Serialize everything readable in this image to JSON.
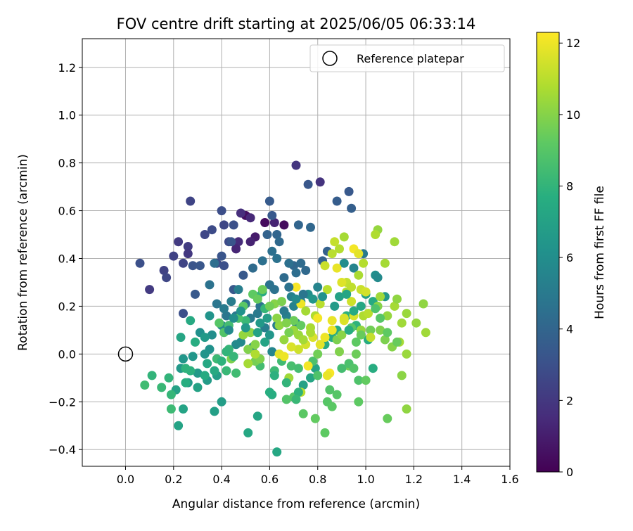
{
  "chart_data": {
    "type": "scatter",
    "title": "FOV centre drift starting at 2025/06/05 06:33:14",
    "xlabel": "Angular distance from reference (arcmin)",
    "ylabel": "Rotation from reference (arcmin)",
    "xlim": [
      -0.18,
      1.6
    ],
    "ylim": [
      -0.47,
      1.32
    ],
    "xticks": [
      "0.0",
      "0.2",
      "0.4",
      "0.6",
      "0.8",
      "1.0",
      "1.2",
      "1.4",
      "1.6"
    ],
    "yticks": [
      "−0.4",
      "−0.2",
      "0.0",
      "0.2",
      "0.4",
      "0.6",
      "0.8",
      "1.0",
      "1.2"
    ],
    "grid": true,
    "legend": {
      "placement": "top-right",
      "entries": [
        "Reference platepar"
      ]
    },
    "reference": {
      "x": 0.0,
      "y": 0.0
    },
    "colorbar": {
      "label": "Hours from first FF file",
      "min": 0,
      "max": 12.3,
      "ticks": [
        "0",
        "2",
        "4",
        "6",
        "8",
        "10",
        "12"
      ],
      "colormap": "viridis"
    },
    "points": [
      [
        0.5,
        0.58,
        0.5
      ],
      [
        0.58,
        0.55,
        0.3
      ],
      [
        0.66,
        0.54,
        0.4
      ],
      [
        0.54,
        0.49,
        0.9
      ],
      [
        0.52,
        0.47,
        1.2
      ],
      [
        0.47,
        0.47,
        1.5
      ],
      [
        0.46,
        0.44,
        1.3
      ],
      [
        0.48,
        0.59,
        1.6
      ],
      [
        0.62,
        0.55,
        1.2
      ],
      [
        0.52,
        0.57,
        1.4
      ],
      [
        0.81,
        0.72,
        1.8
      ],
      [
        0.71,
        0.79,
        1.9
      ],
      [
        0.22,
        0.47,
        2.1
      ],
      [
        0.26,
        0.45,
        2.2
      ],
      [
        0.26,
        0.42,
        2.0
      ],
      [
        0.1,
        0.27,
        2.1
      ],
      [
        0.16,
        0.35,
        2.4
      ],
      [
        0.17,
        0.32,
        2.6
      ],
      [
        0.2,
        0.41,
        2.4
      ],
      [
        0.24,
        0.38,
        2.5
      ],
      [
        0.27,
        0.64,
        2.5
      ],
      [
        0.33,
        0.5,
        2.6
      ],
      [
        0.36,
        0.52,
        2.8
      ],
      [
        0.4,
        0.6,
        2.9
      ],
      [
        0.41,
        0.54,
        2.6
      ],
      [
        0.43,
        0.47,
        2.7
      ],
      [
        0.38,
        0.38,
        2.8
      ],
      [
        0.41,
        0.37,
        3.0
      ],
      [
        0.44,
        0.47,
        3.2
      ],
      [
        0.45,
        0.54,
        3.0
      ],
      [
        0.06,
        0.38,
        3.0
      ],
      [
        0.24,
        0.17,
        3.0
      ],
      [
        0.28,
        0.37,
        3.2
      ],
      [
        0.31,
        0.37,
        3.3
      ],
      [
        0.29,
        0.25,
        3.4
      ],
      [
        0.4,
        0.41,
        3.2
      ],
      [
        0.45,
        0.27,
        3.4
      ],
      [
        0.49,
        0.33,
        3.4
      ],
      [
        0.6,
        0.64,
        3.5
      ],
      [
        0.61,
        0.58,
        3.4
      ],
      [
        0.76,
        0.71,
        3.3
      ],
      [
        0.93,
        0.68,
        3.4
      ],
      [
        0.94,
        0.61,
        3.7
      ],
      [
        0.88,
        0.64,
        3.6
      ],
      [
        0.84,
        0.43,
        3.8
      ],
      [
        0.82,
        0.39,
        3.9
      ],
      [
        0.72,
        0.54,
        4.0
      ],
      [
        0.77,
        0.53,
        4.1
      ],
      [
        0.63,
        0.5,
        4.0
      ],
      [
        0.59,
        0.5,
        3.9
      ],
      [
        0.64,
        0.47,
        4.2
      ],
      [
        0.7,
        0.37,
        4.1
      ],
      [
        0.73,
        0.38,
        4.3
      ],
      [
        0.75,
        0.35,
        4.2
      ],
      [
        0.71,
        0.34,
        4.4
      ],
      [
        0.68,
        0.38,
        4.5
      ],
      [
        0.66,
        0.32,
        4.3
      ],
      [
        0.6,
        0.29,
        4.6
      ],
      [
        0.62,
        0.27,
        4.6
      ],
      [
        0.56,
        0.2,
        4.7
      ],
      [
        0.5,
        0.21,
        4.7
      ],
      [
        0.46,
        0.16,
        4.8
      ],
      [
        0.42,
        0.16,
        4.8
      ],
      [
        0.52,
        0.15,
        5.0
      ],
      [
        0.55,
        0.17,
        5.0
      ],
      [
        0.58,
        0.11,
        5.2
      ],
      [
        0.63,
        0.12,
        5.2
      ],
      [
        0.67,
        0.16,
        5.3
      ],
      [
        0.7,
        0.2,
        5.4
      ],
      [
        0.73,
        0.22,
        5.5
      ],
      [
        0.71,
        0.13,
        5.6
      ],
      [
        0.61,
        0.01,
        5.6
      ],
      [
        0.53,
        0.03,
        5.7
      ],
      [
        0.48,
        0.05,
        5.7
      ],
      [
        0.46,
        0.04,
        5.8
      ],
      [
        0.4,
        0.12,
        5.9
      ],
      [
        0.36,
        0.08,
        6.0
      ],
      [
        0.31,
        0.09,
        6.1
      ],
      [
        0.35,
        0.02,
        6.2
      ],
      [
        0.33,
        0.0,
        6.3
      ],
      [
        0.28,
        -0.01,
        6.4
      ],
      [
        0.24,
        -0.02,
        6.4
      ],
      [
        0.23,
        -0.06,
        6.5
      ],
      [
        0.26,
        -0.12,
        6.6
      ],
      [
        0.3,
        -0.08,
        6.6
      ],
      [
        0.34,
        -0.11,
        6.7
      ],
      [
        0.38,
        -0.09,
        6.8
      ],
      [
        0.4,
        -0.2,
        6.8
      ],
      [
        0.37,
        -0.24,
        6.9
      ],
      [
        0.3,
        -0.14,
        7.0
      ],
      [
        0.21,
        -0.15,
        7.0
      ],
      [
        0.24,
        -0.23,
        7.1
      ],
      [
        0.22,
        -0.3,
        7.1
      ],
      [
        0.55,
        -0.26,
        7.2
      ],
      [
        0.51,
        -0.33,
        7.3
      ],
      [
        0.63,
        -0.41,
        7.3
      ],
      [
        0.74,
        -0.13,
        7.0
      ],
      [
        0.77,
        -0.1,
        7.2
      ],
      [
        0.79,
        -0.06,
        7.1
      ],
      [
        0.83,
        0.04,
        7.4
      ],
      [
        0.86,
        0.07,
        7.5
      ],
      [
        0.88,
        0.1,
        7.5
      ],
      [
        0.98,
        0.2,
        7.3
      ],
      [
        1.0,
        0.25,
        7.0
      ],
      [
        1.03,
        0.22,
        7.4
      ],
      [
        1.01,
        0.06,
        7.6
      ],
      [
        1.03,
        -0.06,
        7.6
      ],
      [
        0.92,
        0.16,
        7.8
      ],
      [
        0.96,
        0.12,
        7.9
      ],
      [
        1.04,
        0.33,
        6.0
      ],
      [
        0.99,
        0.42,
        5.0
      ],
      [
        0.95,
        0.36,
        5.5
      ],
      [
        0.91,
        0.38,
        6.0
      ],
      [
        1.05,
        0.32,
        5.8
      ],
      [
        1.08,
        0.24,
        6.5
      ],
      [
        0.57,
        0.26,
        7.5
      ],
      [
        0.55,
        0.24,
        8.0
      ],
      [
        0.58,
        0.19,
        8.1
      ],
      [
        0.5,
        0.14,
        8.2
      ],
      [
        0.43,
        0.02,
        8.1
      ],
      [
        0.38,
        -0.02,
        8.3
      ],
      [
        0.42,
        -0.07,
        8.2
      ],
      [
        0.46,
        -0.08,
        8.4
      ],
      [
        0.56,
        -0.05,
        8.5
      ],
      [
        0.62,
        -0.07,
        8.3
      ],
      [
        0.65,
        -0.03,
        8.4
      ],
      [
        0.69,
        -0.05,
        8.6
      ],
      [
        0.72,
        -0.06,
        8.5
      ],
      [
        0.78,
        -0.03,
        8.7
      ],
      [
        0.8,
        -0.09,
        8.8
      ],
      [
        0.85,
        -0.15,
        8.9
      ],
      [
        0.88,
        -0.17,
        9.0
      ],
      [
        0.84,
        -0.2,
        9.0
      ],
      [
        0.86,
        -0.22,
        9.1
      ],
      [
        0.83,
        -0.33,
        9.2
      ],
      [
        0.79,
        -0.27,
        9.3
      ],
      [
        0.74,
        -0.25,
        9.1
      ],
      [
        0.7,
        -0.18,
        9.0
      ],
      [
        0.67,
        -0.19,
        8.9
      ],
      [
        0.97,
        -0.11,
        8.8
      ],
      [
        0.97,
        -0.2,
        9.2
      ],
      [
        1.0,
        -0.11,
        9.3
      ],
      [
        1.09,
        -0.27,
        9.4
      ],
      [
        0.93,
        -0.05,
        9.6
      ],
      [
        0.96,
        0.0,
        9.5
      ],
      [
        1.02,
        0.1,
        9.6
      ],
      [
        1.08,
        0.06,
        9.8
      ],
      [
        1.06,
        0.1,
        9.9
      ],
      [
        1.11,
        0.03,
        10.0
      ],
      [
        1.15,
        -0.09,
        10.1
      ],
      [
        1.17,
        -0.23,
        10.2
      ],
      [
        1.21,
        0.13,
        10.3
      ],
      [
        1.24,
        0.21,
        10.2
      ],
      [
        1.25,
        0.09,
        10.5
      ],
      [
        1.17,
        0.0,
        10.4
      ],
      [
        1.14,
        0.05,
        10.6
      ],
      [
        1.17,
        0.17,
        10.4
      ],
      [
        1.15,
        0.13,
        10.5
      ],
      [
        1.12,
        0.2,
        10.6
      ],
      [
        1.13,
        0.23,
        10.2
      ],
      [
        1.09,
        0.16,
        10.3
      ],
      [
        1.06,
        0.24,
        10.5
      ],
      [
        1.05,
        0.2,
        10.0
      ],
      [
        1.05,
        0.52,
        10.3
      ],
      [
        1.12,
        0.47,
        10.5
      ],
      [
        1.08,
        0.38,
        10.6
      ],
      [
        1.04,
        0.5,
        10.8
      ],
      [
        0.99,
        0.38,
        10.9
      ],
      [
        0.97,
        0.33,
        10.7
      ],
      [
        0.91,
        0.49,
        10.6
      ],
      [
        0.89,
        0.44,
        10.9
      ],
      [
        0.87,
        0.47,
        11.2
      ],
      [
        0.86,
        0.42,
        11.0
      ],
      [
        0.83,
        0.37,
        11.3
      ],
      [
        0.84,
        0.27,
        11.0
      ],
      [
        0.92,
        0.3,
        11.2
      ],
      [
        0.94,
        0.22,
        11.4
      ],
      [
        0.95,
        0.16,
        11.6
      ],
      [
        0.91,
        0.14,
        11.7
      ],
      [
        0.86,
        0.14,
        11.9
      ],
      [
        0.83,
        0.07,
        12.0
      ],
      [
        0.81,
        0.04,
        11.8
      ],
      [
        0.78,
        0.07,
        11.6
      ],
      [
        0.75,
        0.04,
        11.5
      ],
      [
        0.72,
        0.02,
        11.4
      ],
      [
        0.69,
        0.03,
        11.6
      ],
      [
        0.64,
        0.0,
        11.8
      ],
      [
        0.66,
        -0.01,
        12.0
      ],
      [
        0.76,
        -0.05,
        12.1
      ],
      [
        0.85,
        -0.08,
        12.2
      ],
      [
        0.73,
        0.21,
        12.0
      ],
      [
        0.71,
        0.28,
        12.2
      ],
      [
        0.81,
        0.21,
        11.0
      ],
      [
        0.79,
        0.16,
        10.8
      ],
      [
        0.77,
        0.11,
        10.7
      ],
      [
        0.75,
        0.18,
        10.6
      ],
      [
        0.7,
        0.1,
        10.4
      ],
      [
        0.64,
        0.12,
        10.2
      ],
      [
        0.62,
        0.21,
        10.0
      ],
      [
        0.52,
        0.09,
        10.1
      ],
      [
        0.49,
        0.08,
        10.3
      ],
      [
        0.54,
        0.04,
        10.0
      ],
      [
        0.51,
        0.02,
        9.9
      ],
      [
        0.44,
        -0.02,
        9.8
      ],
      [
        0.54,
        -0.03,
        9.7
      ],
      [
        0.56,
        -0.02,
        9.9
      ],
      [
        0.68,
        0.09,
        9.7
      ],
      [
        0.7,
        0.14,
        9.5
      ],
      [
        0.73,
        0.12,
        9.3
      ],
      [
        0.8,
        0.0,
        9.6
      ],
      [
        0.88,
        0.06,
        9.8
      ],
      [
        0.89,
        0.01,
        9.9
      ],
      [
        0.9,
        0.08,
        10.1
      ],
      [
        0.98,
        0.1,
        10.3
      ],
      [
        0.99,
        0.16,
        10.8
      ],
      [
        1.01,
        0.17,
        11.0
      ],
      [
        1.02,
        0.07,
        11.2
      ],
      [
        0.92,
        0.26,
        10.9
      ],
      [
        0.94,
        0.28,
        11.1
      ],
      [
        0.98,
        0.27,
        11.3
      ],
      [
        1.0,
        0.26,
        11.5
      ],
      [
        0.9,
        0.3,
        11.7
      ],
      [
        0.88,
        0.36,
        11.9
      ],
      [
        0.95,
        0.44,
        12.1
      ],
      [
        0.97,
        0.42,
        11.8
      ],
      [
        0.91,
        0.15,
        11.6
      ],
      [
        0.86,
        0.1,
        12.0
      ],
      [
        0.8,
        0.15,
        12.1
      ],
      [
        0.84,
        -0.09,
        11.9
      ],
      [
        0.73,
        -0.16,
        11.0
      ],
      [
        0.68,
        -0.1,
        10.5
      ],
      [
        0.51,
        -0.04,
        10.6
      ],
      [
        0.54,
        0.0,
        10.8
      ],
      [
        0.27,
        0.14,
        7.4
      ],
      [
        0.29,
        0.05,
        7.6
      ],
      [
        0.27,
        -0.07,
        7.8
      ],
      [
        0.25,
        -0.06,
        7.9
      ],
      [
        0.25,
        -0.12,
        7.7
      ],
      [
        0.18,
        -0.1,
        8.0
      ],
      [
        0.19,
        -0.17,
        8.1
      ],
      [
        0.15,
        -0.14,
        8.2
      ],
      [
        0.19,
        -0.23,
        8.3
      ],
      [
        0.11,
        -0.09,
        8.0
      ],
      [
        0.08,
        -0.13,
        8.4
      ],
      [
        0.23,
        0.07,
        7.2
      ],
      [
        0.34,
        -0.04,
        7.3
      ],
      [
        0.37,
        -0.07,
        7.4
      ],
      [
        0.33,
        -0.09,
        7.5
      ],
      [
        0.4,
        -0.03,
        7.9
      ],
      [
        0.42,
        0.01,
        8.0
      ],
      [
        0.45,
        -0.01,
        8.1
      ],
      [
        0.43,
        0.12,
        8.5
      ],
      [
        0.47,
        0.15,
        8.7
      ],
      [
        0.41,
        0.09,
        8.9
      ],
      [
        0.39,
        0.13,
        9.0
      ],
      [
        0.49,
        0.2,
        9.1
      ],
      [
        0.53,
        0.25,
        9.2
      ],
      [
        0.55,
        0.23,
        9.4
      ],
      [
        0.57,
        0.27,
        9.5
      ],
      [
        0.6,
        0.2,
        9.6
      ],
      [
        0.65,
        0.22,
        9.8
      ],
      [
        0.67,
        0.13,
        9.9
      ],
      [
        0.63,
        0.15,
        10.1
      ],
      [
        0.66,
        0.06,
        10.3
      ],
      [
        0.72,
        0.08,
        10.4
      ],
      [
        0.74,
        0.06,
        10.6
      ],
      [
        0.77,
        0.09,
        10.7
      ],
      [
        0.67,
        -0.12,
        8.0
      ],
      [
        0.62,
        -0.09,
        7.8
      ],
      [
        0.6,
        -0.16,
        7.7
      ],
      [
        0.61,
        -0.17,
        7.6
      ],
      [
        0.72,
        -0.16,
        7.9
      ],
      [
        0.71,
        -0.19,
        8.2
      ],
      [
        0.9,
        -0.06,
        8.5
      ],
      [
        0.93,
        -0.04,
        8.7
      ],
      [
        0.95,
        -0.06,
        8.9
      ],
      [
        0.94,
        0.11,
        9.0
      ],
      [
        0.96,
        0.05,
        9.2
      ],
      [
        0.98,
        0.08,
        9.4
      ],
      [
        1.04,
        0.19,
        8.8
      ],
      [
        1.06,
        0.15,
        9.0
      ],
      [
        1.09,
        0.09,
        9.2
      ],
      [
        1.13,
        0.05,
        9.4
      ],
      [
        0.58,
        0.05,
        7.1
      ],
      [
        0.55,
        0.09,
        7.0
      ],
      [
        0.59,
        0.15,
        6.8
      ],
      [
        0.56,
        0.13,
        6.6
      ],
      [
        0.6,
        0.08,
        6.4
      ],
      [
        0.5,
        0.11,
        6.5
      ],
      [
        0.48,
        0.18,
        6.2
      ],
      [
        0.45,
        0.15,
        6.0
      ],
      [
        0.43,
        0.1,
        5.8
      ],
      [
        0.35,
        0.16,
        6.3
      ],
      [
        0.33,
        0.07,
        6.6
      ],
      [
        0.66,
        0.18,
        5.0
      ],
      [
        0.69,
        0.24,
        5.3
      ],
      [
        0.71,
        0.23,
        5.8
      ],
      [
        0.76,
        0.25,
        6.0
      ],
      [
        0.8,
        0.28,
        5.5
      ],
      [
        0.82,
        0.24,
        6.2
      ],
      [
        0.78,
        0.23,
        6.4
      ],
      [
        0.87,
        0.2,
        6.7
      ],
      [
        0.89,
        0.24,
        7.0
      ],
      [
        0.92,
        0.25,
        7.2
      ],
      [
        0.95,
        0.18,
        7.4
      ],
      [
        0.93,
        0.1,
        7.6
      ],
      [
        0.61,
        0.43,
        4.5
      ],
      [
        0.63,
        0.4,
        4.6
      ],
      [
        0.57,
        0.39,
        4.5
      ],
      [
        0.53,
        0.36,
        4.3
      ],
      [
        0.68,
        0.28,
        4.6
      ],
      [
        0.74,
        0.25,
        4.8
      ],
      [
        0.37,
        0.38,
        4.4
      ],
      [
        0.35,
        0.29,
        4.6
      ],
      [
        0.38,
        0.21,
        4.8
      ],
      [
        0.41,
        0.19,
        5.0
      ],
      [
        0.44,
        0.22,
        5.1
      ],
      [
        0.47,
        0.27,
        5.2
      ]
    ]
  }
}
